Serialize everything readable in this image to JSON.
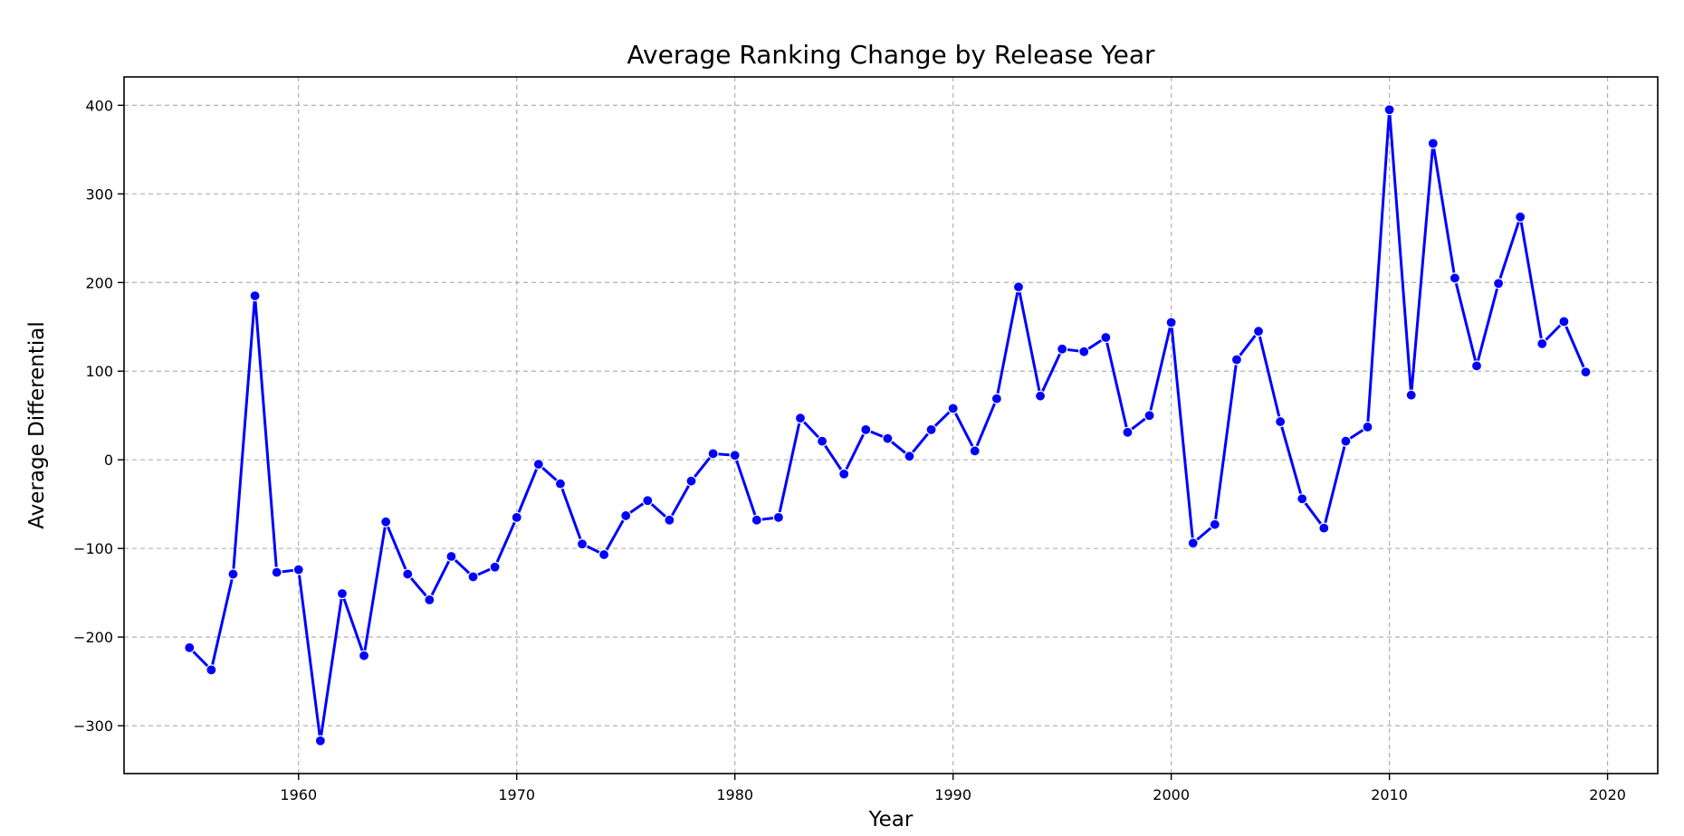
{
  "chart_data": {
    "type": "line",
    "title": "Average Ranking Change by Release Year",
    "xlabel": "Year",
    "ylabel": "Average Differential",
    "xlim": [
      1952,
      2022.3
    ],
    "ylim": [
      -354,
      432
    ],
    "x_ticks": [
      1960,
      1970,
      1980,
      1990,
      2000,
      2010,
      2020
    ],
    "x_tick_labels": [
      "1960",
      "1970",
      "1980",
      "1990",
      "2000",
      "2010",
      "2020"
    ],
    "y_ticks": [
      400,
      300,
      200,
      100,
      0,
      -100,
      -200,
      -300
    ],
    "y_tick_labels": [
      "400",
      "300",
      "200",
      "100",
      "0",
      "−100",
      "−200",
      "−300"
    ],
    "grid": true,
    "line_color": "#0000ff",
    "marker_color": "#0000ff",
    "series": [
      {
        "x": [
          1955,
          1956,
          1957,
          1958,
          1959,
          1960,
          1961,
          1962,
          1963,
          1964,
          1965,
          1966,
          1967,
          1968,
          1969,
          1970,
          1971,
          1972,
          1973,
          1974,
          1975,
          1976,
          1977,
          1978,
          1979,
          1980,
          1981,
          1982,
          1983,
          1984,
          1985,
          1986,
          1987,
          1988,
          1989,
          1990,
          1991,
          1992,
          1993,
          1994,
          1995,
          1996,
          1997,
          1998,
          1999,
          2000,
          2001,
          2002,
          2003,
          2004,
          2005,
          2006,
          2007,
          2008,
          2009,
          2010,
          2011,
          2012,
          2013,
          2014,
          2015,
          2016,
          2017,
          2018,
          2019
        ],
        "values": [
          -212,
          -237,
          -129,
          185,
          -127,
          -124,
          -317,
          -151,
          -221,
          -70,
          -129,
          -158,
          -109,
          -132,
          -121,
          -65,
          -5,
          -27,
          -95,
          -107,
          -63,
          -46,
          -68,
          -24,
          7,
          5,
          -68,
          -65,
          47,
          21,
          -16,
          34,
          24,
          4,
          34,
          58,
          10,
          69,
          195,
          72,
          125,
          122,
          138,
          31,
          50,
          155,
          -94,
          -73,
          113,
          145,
          43,
          -44,
          -77,
          21,
          37,
          395,
          73,
          357,
          205,
          106,
          199,
          274,
          131,
          156,
          99
        ]
      }
    ]
  }
}
